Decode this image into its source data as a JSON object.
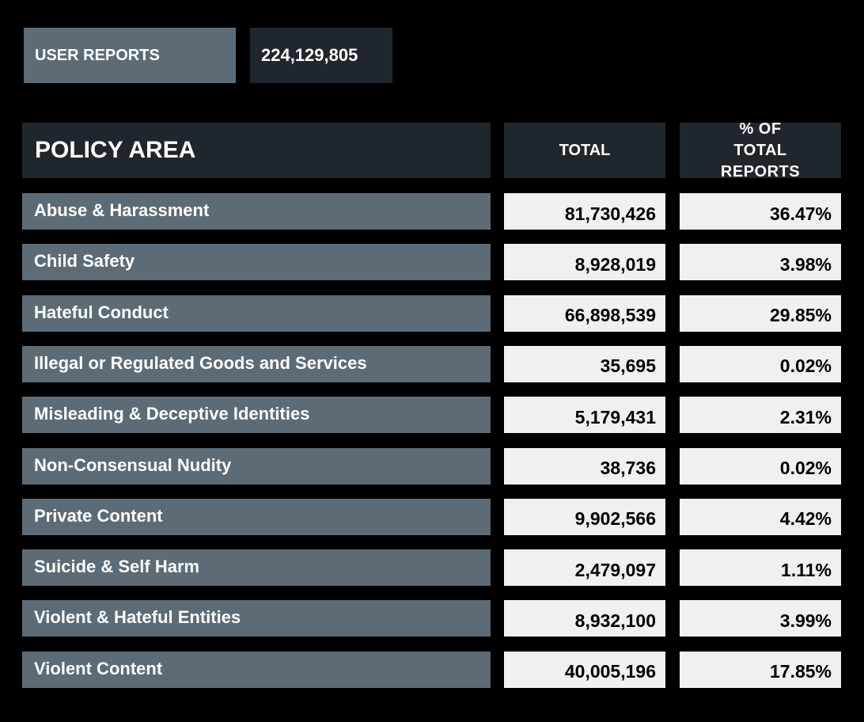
{
  "summary": {
    "label": "USER REPORTS",
    "value": "224,129,805"
  },
  "table": {
    "headers": [
      "POLICY AREA",
      "TOTAL",
      "% OF TOTAL REPORTS"
    ],
    "rows": [
      [
        "Abuse & Harassment",
        "81,730,426",
        "36.47%"
      ],
      [
        "Child Safety",
        "8,928,019",
        "3.98%"
      ],
      [
        "Hateful Conduct",
        "66,898,539",
        "29.85%"
      ],
      [
        "Illegal or Regulated Goods and Services",
        "35,695",
        "0.02%"
      ],
      [
        "Misleading & Deceptive Identities",
        "5,179,431",
        "2.31%"
      ],
      [
        "Non-Consensual Nudity",
        "38,736",
        "0.02%"
      ],
      [
        "Private Content",
        "9,902,566",
        "4.42%"
      ],
      [
        "Suicide & Self Harm",
        "2,479,097",
        "1.11%"
      ],
      [
        "Violent & Hateful Entities",
        "8,932,100",
        "3.99%"
      ],
      [
        "Violent Content",
        "40,005,196",
        "17.85%"
      ]
    ]
  }
}
